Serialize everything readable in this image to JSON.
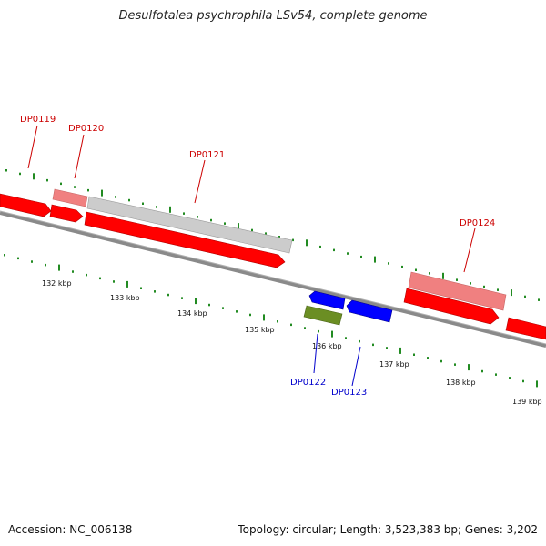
{
  "title": "Desulfotalea psychrophila LSv54, complete genome",
  "accession": "Accession: NC_006138",
  "summary": "Topology: circular; Length: 3,523,383 bp; Genes: 3,202",
  "colors": {
    "forward_cds": "#ff0000",
    "forward_cds_light": "#f08080",
    "pseudo": "#c8c8c8",
    "reverse_cds": "#0000ff",
    "rna": "#6b8e23",
    "backbone": "#808080",
    "tick": "#228b22",
    "label_forward": "#cc0000",
    "label_reverse": "#0000cc"
  },
  "scale_labels": [
    "132 kbp",
    "133 kbp",
    "134 kbp",
    "135 kbp",
    "136 kbp",
    "137 kbp",
    "138 kbp",
    "139 kbp"
  ],
  "gene_labels": {
    "dp0119": "DP0119",
    "dp0120": "DP0120",
    "dp0121": "DP0121",
    "dp0122": "DP0122",
    "dp0123": "DP0123",
    "dp0124": "DP0124"
  }
}
